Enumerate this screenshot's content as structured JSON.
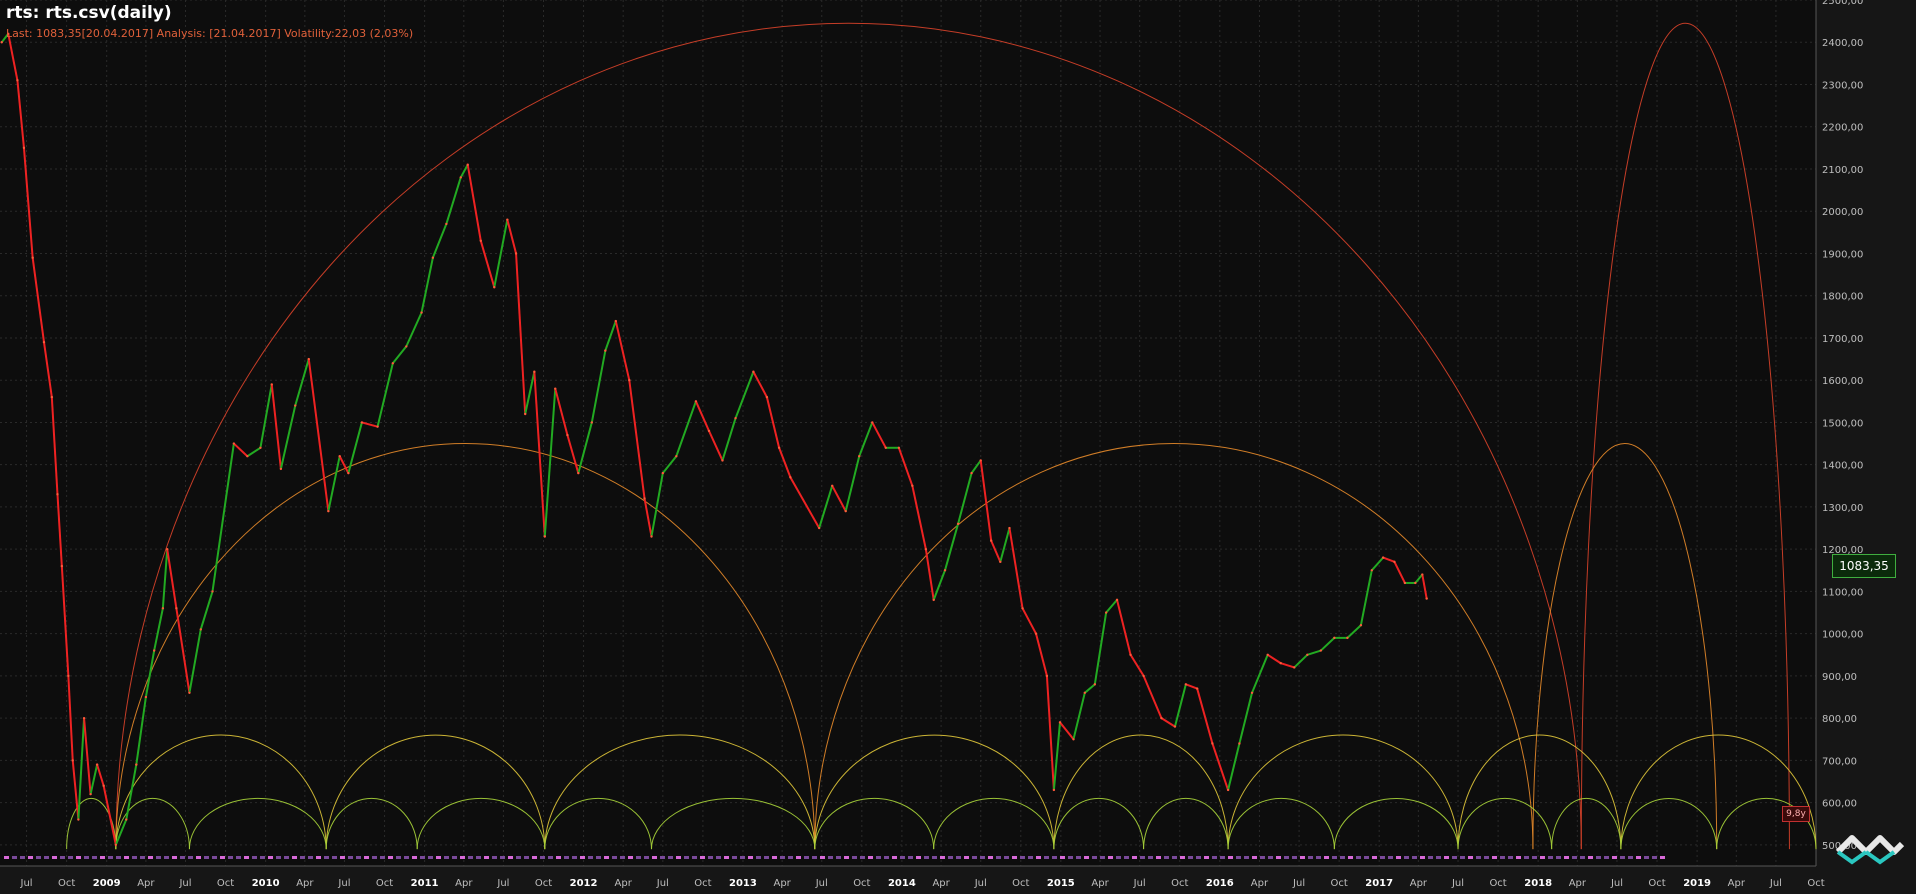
{
  "header": {
    "title": "rts: rts.csv(daily)",
    "subtitle": "Last: 1083,35[20.04.2017] Analysis: [21.04.2017] Volatility:22,03 (2,03%)"
  },
  "price_tag": "1083,35",
  "vol_badge": "9,8y",
  "colors": {
    "background": "#0d0d0d",
    "grid": "#2a2a2a",
    "up_candle": "#22aa22",
    "down_candle": "#ee2222",
    "cycle_large": "#d9432a",
    "cycle_medium": "#e58a2a",
    "cycle_small": "#e0c63a",
    "cycle_smallest": "#a8d43a",
    "axis_text": "#bfbfbf"
  },
  "chart_data": {
    "type": "line",
    "title": "rts: rts.csv(daily)",
    "xlabel": "",
    "ylabel": "",
    "x_range": [
      "2008-05-01",
      "2019-10-01"
    ],
    "ylim": [
      450,
      2500
    ],
    "y_ticks": [
      "500,00",
      "600,00",
      "700,00",
      "800,00",
      "900,00",
      "1000,00",
      "1100,00",
      "1200,00",
      "1300,00",
      "1400,00",
      "1500,00",
      "1600,00",
      "1700,00",
      "1800,00",
      "1900,00",
      "2000,00",
      "2100,00",
      "2200,00",
      "2300,00",
      "2400,00",
      "2500,00"
    ],
    "x_ticks": [
      {
        "date": "2008-07-01",
        "label": "Jul"
      },
      {
        "date": "2008-10-01",
        "label": "Oct"
      },
      {
        "date": "2009-01-01",
        "label": "2009"
      },
      {
        "date": "2009-04-01",
        "label": "Apr"
      },
      {
        "date": "2009-07-01",
        "label": "Jul"
      },
      {
        "date": "2009-10-01",
        "label": "Oct"
      },
      {
        "date": "2010-01-01",
        "label": "2010"
      },
      {
        "date": "2010-04-01",
        "label": "Apr"
      },
      {
        "date": "2010-07-01",
        "label": "Jul"
      },
      {
        "date": "2010-10-01",
        "label": "Oct"
      },
      {
        "date": "2011-01-01",
        "label": "2011"
      },
      {
        "date": "2011-04-01",
        "label": "Apr"
      },
      {
        "date": "2011-07-01",
        "label": "Jul"
      },
      {
        "date": "2011-10-01",
        "label": "Oct"
      },
      {
        "date": "2012-01-01",
        "label": "2012"
      },
      {
        "date": "2012-04-01",
        "label": "Apr"
      },
      {
        "date": "2012-07-01",
        "label": "Jul"
      },
      {
        "date": "2012-10-01",
        "label": "Oct"
      },
      {
        "date": "2013-01-01",
        "label": "2013"
      },
      {
        "date": "2013-04-01",
        "label": "Apr"
      },
      {
        "date": "2013-07-01",
        "label": "Jul"
      },
      {
        "date": "2013-10-01",
        "label": "Oct"
      },
      {
        "date": "2014-01-01",
        "label": "2014"
      },
      {
        "date": "2014-04-01",
        "label": "Apr"
      },
      {
        "date": "2014-07-01",
        "label": "Jul"
      },
      {
        "date": "2014-10-01",
        "label": "Oct"
      },
      {
        "date": "2015-01-01",
        "label": "2015"
      },
      {
        "date": "2015-04-01",
        "label": "Apr"
      },
      {
        "date": "2015-07-01",
        "label": "Jul"
      },
      {
        "date": "2015-10-01",
        "label": "Oct"
      },
      {
        "date": "2016-01-01",
        "label": "2016"
      },
      {
        "date": "2016-04-01",
        "label": "Apr"
      },
      {
        "date": "2016-07-01",
        "label": "Jul"
      },
      {
        "date": "2016-10-01",
        "label": "Oct"
      },
      {
        "date": "2017-01-01",
        "label": "2017"
      },
      {
        "date": "2017-04-01",
        "label": "Apr"
      },
      {
        "date": "2017-07-01",
        "label": "Jul"
      },
      {
        "date": "2017-10-01",
        "label": "Oct"
      },
      {
        "date": "2018-01-01",
        "label": "2018"
      },
      {
        "date": "2018-04-01",
        "label": "Apr"
      },
      {
        "date": "2018-07-01",
        "label": "Jul"
      },
      {
        "date": "2018-10-01",
        "label": "Oct"
      },
      {
        "date": "2019-01-01",
        "label": "2019"
      },
      {
        "date": "2019-04-01",
        "label": "Apr"
      },
      {
        "date": "2019-07-01",
        "label": "Jul"
      },
      {
        "date": "2019-10-01",
        "label": "Oct"
      }
    ],
    "grid": true,
    "series": [
      {
        "values": [
          {
            "x": "2008-05-05",
            "y": 2400
          },
          {
            "x": "2008-05-20",
            "y": 2420
          },
          {
            "x": "2008-06-10",
            "y": 2310
          },
          {
            "x": "2008-06-25",
            "y": 2150
          },
          {
            "x": "2008-07-15",
            "y": 1890
          },
          {
            "x": "2008-08-10",
            "y": 1690
          },
          {
            "x": "2008-08-28",
            "y": 1560
          },
          {
            "x": "2008-09-10",
            "y": 1330
          },
          {
            "x": "2008-09-20",
            "y": 1160
          },
          {
            "x": "2008-10-05",
            "y": 900
          },
          {
            "x": "2008-10-15",
            "y": 700
          },
          {
            "x": "2008-10-28",
            "y": 560
          },
          {
            "x": "2008-11-10",
            "y": 800
          },
          {
            "x": "2008-11-25",
            "y": 620
          },
          {
            "x": "2008-12-10",
            "y": 690
          },
          {
            "x": "2008-12-25",
            "y": 640
          },
          {
            "x": "2009-01-22",
            "y": 500
          },
          {
            "x": "2009-02-15",
            "y": 560
          },
          {
            "x": "2009-03-10",
            "y": 690
          },
          {
            "x": "2009-04-01",
            "y": 850
          },
          {
            "x": "2009-04-20",
            "y": 960
          },
          {
            "x": "2009-05-10",
            "y": 1060
          },
          {
            "x": "2009-05-20",
            "y": 1200
          },
          {
            "x": "2009-06-10",
            "y": 1060
          },
          {
            "x": "2009-07-10",
            "y": 860
          },
          {
            "x": "2009-08-05",
            "y": 1010
          },
          {
            "x": "2009-09-01",
            "y": 1100
          },
          {
            "x": "2009-10-20",
            "y": 1450
          },
          {
            "x": "2009-11-20",
            "y": 1420
          },
          {
            "x": "2009-12-20",
            "y": 1440
          },
          {
            "x": "2010-01-15",
            "y": 1590
          },
          {
            "x": "2010-02-05",
            "y": 1390
          },
          {
            "x": "2010-03-10",
            "y": 1540
          },
          {
            "x": "2010-04-10",
            "y": 1650
          },
          {
            "x": "2010-05-25",
            "y": 1290
          },
          {
            "x": "2010-06-20",
            "y": 1420
          },
          {
            "x": "2010-07-10",
            "y": 1380
          },
          {
            "x": "2010-08-10",
            "y": 1500
          },
          {
            "x": "2010-09-15",
            "y": 1490
          },
          {
            "x": "2010-10-20",
            "y": 1640
          },
          {
            "x": "2010-11-20",
            "y": 1680
          },
          {
            "x": "2010-12-25",
            "y": 1760
          },
          {
            "x": "2011-01-20",
            "y": 1890
          },
          {
            "x": "2011-02-20",
            "y": 1970
          },
          {
            "x": "2011-03-25",
            "y": 2080
          },
          {
            "x": "2011-04-10",
            "y": 2110
          },
          {
            "x": "2011-05-10",
            "y": 1930
          },
          {
            "x": "2011-06-10",
            "y": 1820
          },
          {
            "x": "2011-07-10",
            "y": 1980
          },
          {
            "x": "2011-07-30",
            "y": 1900
          },
          {
            "x": "2011-08-20",
            "y": 1520
          },
          {
            "x": "2011-09-10",
            "y": 1620
          },
          {
            "x": "2011-10-04",
            "y": 1230
          },
          {
            "x": "2011-10-28",
            "y": 1580
          },
          {
            "x": "2011-11-25",
            "y": 1470
          },
          {
            "x": "2011-12-20",
            "y": 1380
          },
          {
            "x": "2012-01-20",
            "y": 1500
          },
          {
            "x": "2012-02-20",
            "y": 1670
          },
          {
            "x": "2012-03-15",
            "y": 1740
          },
          {
            "x": "2012-04-15",
            "y": 1600
          },
          {
            "x": "2012-05-20",
            "y": 1320
          },
          {
            "x": "2012-06-05",
            "y": 1230
          },
          {
            "x": "2012-07-01",
            "y": 1380
          },
          {
            "x": "2012-08-01",
            "y": 1420
          },
          {
            "x": "2012-09-15",
            "y": 1550
          },
          {
            "x": "2012-10-15",
            "y": 1480
          },
          {
            "x": "2012-11-15",
            "y": 1410
          },
          {
            "x": "2012-12-15",
            "y": 1510
          },
          {
            "x": "2013-01-25",
            "y": 1620
          },
          {
            "x": "2013-02-25",
            "y": 1560
          },
          {
            "x": "2013-03-25",
            "y": 1440
          },
          {
            "x": "2013-04-20",
            "y": 1370
          },
          {
            "x": "2013-06-25",
            "y": 1250
          },
          {
            "x": "2013-07-25",
            "y": 1350
          },
          {
            "x": "2013-08-25",
            "y": 1290
          },
          {
            "x": "2013-09-25",
            "y": 1420
          },
          {
            "x": "2013-10-25",
            "y": 1500
          },
          {
            "x": "2013-11-25",
            "y": 1440
          },
          {
            "x": "2013-12-25",
            "y": 1440
          },
          {
            "x": "2014-01-25",
            "y": 1350
          },
          {
            "x": "2014-02-25",
            "y": 1200
          },
          {
            "x": "2014-03-15",
            "y": 1080
          },
          {
            "x": "2014-04-10",
            "y": 1150
          },
          {
            "x": "2014-05-10",
            "y": 1260
          },
          {
            "x": "2014-06-10",
            "y": 1380
          },
          {
            "x": "2014-07-01",
            "y": 1410
          },
          {
            "x": "2014-07-25",
            "y": 1220
          },
          {
            "x": "2014-08-15",
            "y": 1170
          },
          {
            "x": "2014-09-05",
            "y": 1250
          },
          {
            "x": "2014-10-05",
            "y": 1060
          },
          {
            "x": "2014-11-05",
            "y": 1000
          },
          {
            "x": "2014-11-30",
            "y": 900
          },
          {
            "x": "2014-12-16",
            "y": 630
          },
          {
            "x": "2014-12-30",
            "y": 790
          },
          {
            "x": "2015-01-30",
            "y": 750
          },
          {
            "x": "2015-02-25",
            "y": 860
          },
          {
            "x": "2015-03-20",
            "y": 880
          },
          {
            "x": "2015-04-15",
            "y": 1050
          },
          {
            "x": "2015-05-10",
            "y": 1080
          },
          {
            "x": "2015-06-10",
            "y": 950
          },
          {
            "x": "2015-07-10",
            "y": 900
          },
          {
            "x": "2015-08-20",
            "y": 800
          },
          {
            "x": "2015-09-20",
            "y": 780
          },
          {
            "x": "2015-10-15",
            "y": 880
          },
          {
            "x": "2015-11-10",
            "y": 870
          },
          {
            "x": "2015-12-15",
            "y": 740
          },
          {
            "x": "2016-01-20",
            "y": 630
          },
          {
            "x": "2016-02-15",
            "y": 740
          },
          {
            "x": "2016-03-15",
            "y": 860
          },
          {
            "x": "2016-04-20",
            "y": 950
          },
          {
            "x": "2016-05-20",
            "y": 930
          },
          {
            "x": "2016-06-20",
            "y": 920
          },
          {
            "x": "2016-07-20",
            "y": 950
          },
          {
            "x": "2016-08-20",
            "y": 960
          },
          {
            "x": "2016-09-20",
            "y": 990
          },
          {
            "x": "2016-10-20",
            "y": 990
          },
          {
            "x": "2016-11-20",
            "y": 1020
          },
          {
            "x": "2016-12-15",
            "y": 1150
          },
          {
            "x": "2017-01-10",
            "y": 1180
          },
          {
            "x": "2017-02-05",
            "y": 1170
          },
          {
            "x": "2017-03-01",
            "y": 1120
          },
          {
            "x": "2017-03-25",
            "y": 1120
          },
          {
            "x": "2017-04-10",
            "y": 1140
          },
          {
            "x": "2017-04-20",
            "y": 1083
          }
        ]
      }
    ],
    "cycles": [
      {
        "level": "large",
        "lows": [
          "2009-01-22",
          "2018-04-10",
          "2019-08-01"
        ],
        "apex": 2445
      },
      {
        "level": "medium",
        "lows": [
          "2009-01-22",
          "2013-06-15",
          "2017-12-20",
          "2019-02-15"
        ],
        "apex": 1450
      },
      {
        "level": "small",
        "lows": [
          "2009-01-22",
          "2010-05-20",
          "2011-10-04",
          "2013-06-15",
          "2014-12-16",
          "2016-01-20",
          "2017-07-01",
          "2018-07-10",
          "2019-10-01"
        ],
        "apex": 760
      },
      {
        "level": "smallest",
        "lows": [
          "2008-10-01",
          "2009-01-22",
          "2009-07-10",
          "2010-05-20",
          "2010-12-15",
          "2011-10-04",
          "2012-06-05",
          "2013-06-15",
          "2014-03-15",
          "2014-12-16",
          "2015-07-10",
          "2016-01-20",
          "2016-09-20",
          "2017-07-01",
          "2018-02-01",
          "2018-07-10",
          "2019-02-15",
          "2019-10-01"
        ],
        "apex": 610
      }
    ]
  }
}
